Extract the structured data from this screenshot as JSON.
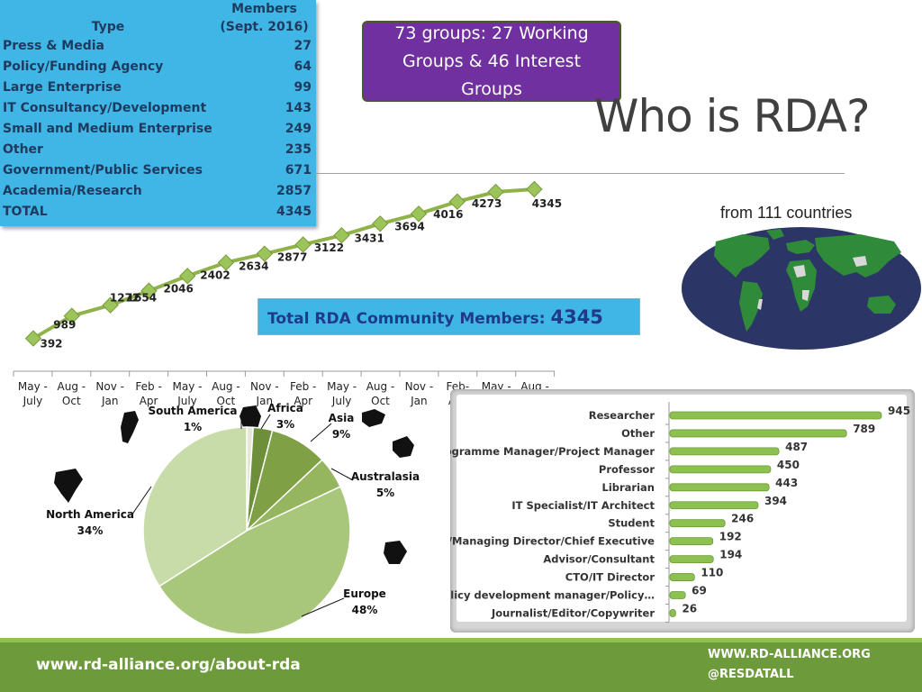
{
  "members_table": {
    "header_type": "Type",
    "header_members_line1": "Members",
    "header_members_line2": "(Sept. 2016)",
    "rows": [
      {
        "type": "Press & Media",
        "members": "27"
      },
      {
        "type": "Policy/Funding Agency",
        "members": "64"
      },
      {
        "type": "Large Enterprise",
        "members": "99"
      },
      {
        "type": "IT Consultancy/Development",
        "members": "143"
      },
      {
        "type": "Small and Medium Enterprise",
        "members": "249"
      },
      {
        "type": "Other",
        "members": "235"
      },
      {
        "type": "Government/Public Services",
        "members": "671"
      },
      {
        "type": "Academia/Research",
        "members": "2857"
      },
      {
        "type": "TOTAL",
        "members": "4345"
      }
    ]
  },
  "groups_box": {
    "text": "73 groups: 27 Working Groups & 46 Interest Groups"
  },
  "title": "Who is RDA?",
  "countries_text": "from 111 countries",
  "total_box": {
    "label": "Total RDA Community Members: ",
    "value": "4345"
  },
  "footer": {
    "url": "www.rd-alliance.org/about-rda",
    "website": "WWW.RD-ALLIANCE.ORG",
    "twitter": "@RESDATALL"
  },
  "colors": {
    "table_bg": "#3fb6e6",
    "groups_bg": "#7030a0",
    "line_green": "#8fb34a",
    "marker_green": "#9bc45a",
    "bar_green": "#8cc152",
    "footer_green": "#6d9a3a",
    "pie_light": "#c8dcaa",
    "pie_mid": "#a9c77a",
    "pie_dark": "#7fa044",
    "map_ocean": "#2b3566",
    "map_land": "#2f8a3a"
  },
  "chart_data": [
    {
      "type": "line",
      "categories": [
        "May -\nJuly",
        "Aug -\nOct",
        "Nov -\nJan",
        "Feb -\nApr",
        "May -\nJuly",
        "Aug -\nOct",
        "Nov -\nJan",
        "Feb -\nApr",
        "May -\nJuly",
        "Aug -\nOct",
        "Nov -\nJan",
        "Feb-\nApr",
        "May -\nJuly",
        "Aug -\nOct"
      ],
      "values": [
        392,
        989,
        1272,
        1654,
        2046,
        2402,
        2634,
        2877,
        3122,
        3431,
        3694,
        4016,
        4273,
        4345
      ],
      "ylim": [
        0,
        4345
      ]
    },
    {
      "type": "pie",
      "slices": [
        {
          "label": "South America",
          "pct": "1%",
          "value": 1
        },
        {
          "label": "Africa",
          "pct": "3%",
          "value": 3
        },
        {
          "label": "Asia",
          "pct": "9%",
          "value": 9
        },
        {
          "label": "Australasia",
          "pct": "5%",
          "value": 5
        },
        {
          "label": "Europe",
          "pct": "48%",
          "value": 48
        },
        {
          "label": "North America",
          "pct": "34%",
          "value": 34
        }
      ]
    },
    {
      "type": "bar",
      "orientation": "horizontal",
      "categories": [
        "Researcher",
        "Other",
        "Programme Manager/Project Manager",
        "Professor",
        "Librarian",
        "IT Specialist/IT Architect",
        "Student",
        "CEO/Managing Director/Chief Executive",
        "Advisor/Consultant",
        "CTO/IT Director",
        "Policy development manager/Policy…",
        "Journalist/Editor/Copywriter"
      ],
      "values": [
        945,
        789,
        487,
        450,
        443,
        394,
        246,
        192,
        194,
        110,
        69,
        26
      ],
      "xlim": [
        0,
        945
      ]
    }
  ]
}
